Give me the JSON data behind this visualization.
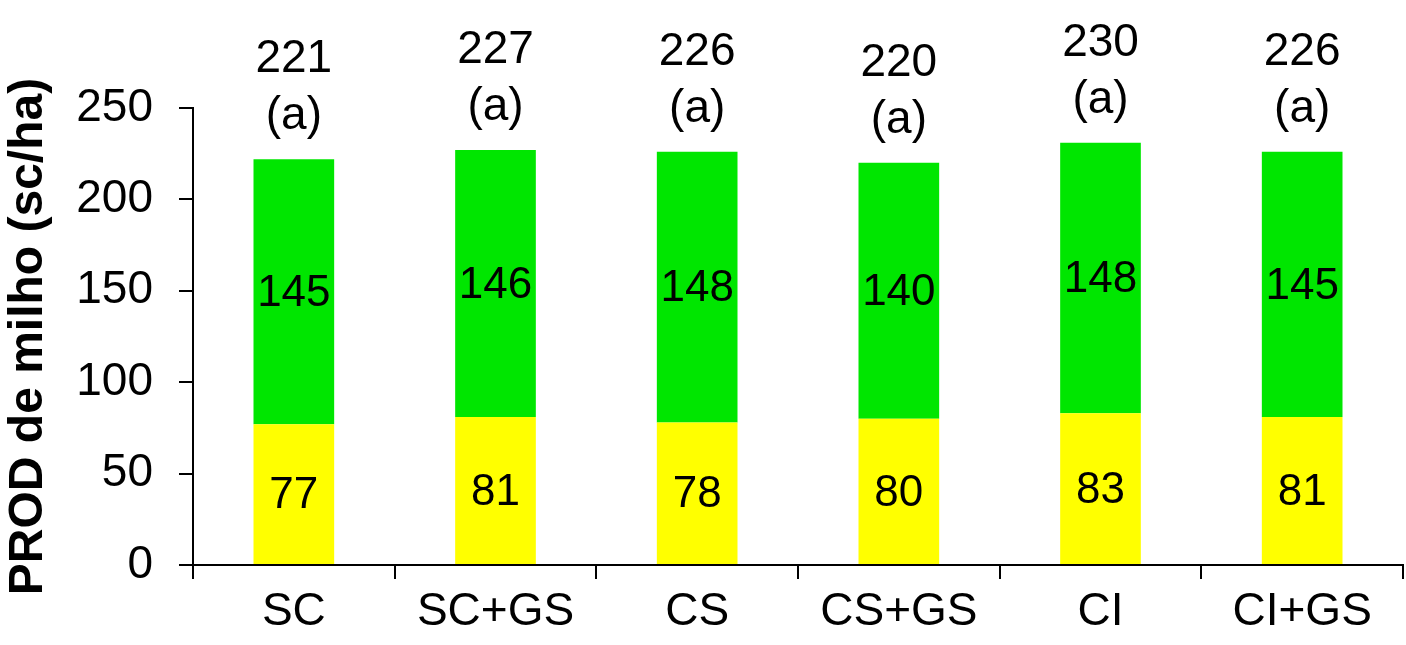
{
  "chart_data": {
    "type": "bar",
    "stacked": true,
    "data_labels": true,
    "grid": false,
    "legend": false,
    "ylabel": "PROD de milho (sc/ha)",
    "categories": [
      "SC",
      "SC+GS",
      "CS",
      "CS+GS",
      "CI",
      "CI+GS"
    ],
    "series": [
      {
        "color": "#ffff00",
        "values": [
          77,
          81,
          78,
          80,
          83,
          81
        ]
      },
      {
        "color": "#00e600",
        "values": [
          145,
          146,
          148,
          140,
          148,
          145
        ]
      }
    ],
    "totals": [
      "221\n(a)",
      "227\n(a)",
      "226\n(a)",
      "220\n(a)",
      "230\n(a)",
      "226\n(a)"
    ],
    "ylim": [
      0,
      250
    ],
    "yticks": [
      0,
      50,
      100,
      150,
      200,
      250
    ]
  }
}
